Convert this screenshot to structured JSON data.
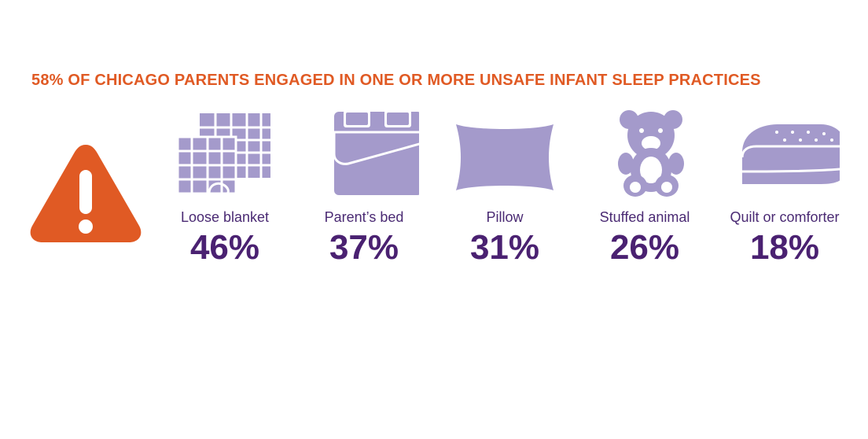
{
  "colors": {
    "accent": "#E05A24",
    "icon": "#A49ACB",
    "value": "#4A2171",
    "label": "#4A2A73"
  },
  "chart_data": {
    "type": "bar",
    "title": "58% OF CHICAGO PARENTS ENGAGED IN ONE OR MORE UNSAFE INFANT SLEEP PRACTICES",
    "categories": [
      "Loose blanket",
      "Parent’s bed",
      "Pillow",
      "Stuffed animal",
      "Quilt or comforter"
    ],
    "values": [
      46,
      37,
      31,
      26,
      18
    ],
    "value_labels": [
      "46%",
      "37%",
      "31%",
      "26%",
      "18%"
    ],
    "icons": [
      "blanket-icon",
      "bed-icon",
      "pillow-icon",
      "teddy-bear-icon",
      "quilt-icon"
    ],
    "unit": "%"
  }
}
